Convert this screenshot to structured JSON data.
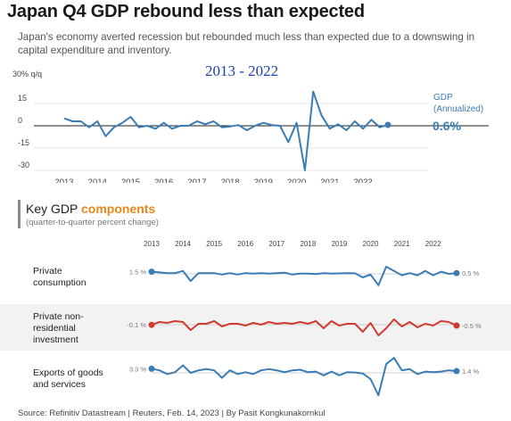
{
  "title": "Japan Q4 GDP rebound less than expected",
  "subtitle": "Japan's economy averted recession but rebounded much less than expected due to a downswing in capital expenditure and inventory.",
  "overlay_label": "2013 - 2022",
  "units_label": "30% q/q",
  "colors": {
    "series": "#3a7db5",
    "investment": "#d03b30",
    "accent": "#e8871e",
    "axis": "#222222"
  },
  "chart_data": [
    {
      "type": "line",
      "x": [
        2013.0,
        2013.25,
        2013.5,
        2013.75,
        2014.0,
        2014.25,
        2014.5,
        2014.75,
        2015.0,
        2015.25,
        2015.5,
        2015.75,
        2016.0,
        2016.25,
        2016.5,
        2016.75,
        2017.0,
        2017.25,
        2017.5,
        2017.75,
        2018.0,
        2018.25,
        2018.5,
        2018.75,
        2019.0,
        2019.25,
        2019.5,
        2019.75,
        2020.0,
        2020.25,
        2020.5,
        2020.75,
        2021.0,
        2021.25,
        2021.5,
        2021.75,
        2022.0,
        2022.25,
        2022.5,
        2022.75
      ],
      "series": [
        {
          "name": "GDP (Annualized)",
          "values": [
            5,
            3,
            3,
            -1,
            3,
            -7,
            -1,
            2,
            6,
            -1,
            0,
            -2,
            2,
            -2,
            0,
            0,
            3,
            1,
            3,
            -1,
            -0.5,
            0.5,
            -3,
            0,
            2,
            0.5,
            0,
            -11,
            2,
            -30,
            23,
            7,
            -2,
            1,
            -3,
            3,
            -2,
            4,
            -1,
            0.6
          ],
          "end_label": "0.6%"
        }
      ],
      "ylim": [
        -30,
        30
      ],
      "yticks": [
        "15",
        "0",
        "-15",
        "-30"
      ],
      "xticks": [
        "2013",
        "2014",
        "2015",
        "2016",
        "2017",
        "2018",
        "2019",
        "2020",
        "2021",
        "2022"
      ]
    },
    {
      "type": "line",
      "title": "Key GDP components",
      "subtitle": "(quarter-to-quarter percent change)",
      "title_plain": "Key GDP",
      "title_highlight": "components",
      "xticks": [
        "2013",
        "2014",
        "2015",
        "2016",
        "2017",
        "2018",
        "2019",
        "2020",
        "2021",
        "2022"
      ],
      "x": [
        2013.0,
        2013.25,
        2013.5,
        2013.75,
        2014.0,
        2014.25,
        2014.5,
        2014.75,
        2015.0,
        2015.25,
        2015.5,
        2015.75,
        2016.0,
        2016.25,
        2016.5,
        2016.75,
        2017.0,
        2017.25,
        2017.5,
        2017.75,
        2018.0,
        2018.25,
        2018.5,
        2018.75,
        2019.0,
        2019.25,
        2019.5,
        2019.75,
        2020.0,
        2020.25,
        2020.5,
        2020.75,
        2021.0,
        2021.25,
        2021.5,
        2021.75,
        2022.0,
        2022.25,
        2022.5,
        2022.75
      ],
      "series": [
        {
          "name": "Private consumption",
          "start_label": "1.5 %",
          "end_label": "0.5 %",
          "values": [
            1.5,
            1.0,
            0.5,
            0.5,
            2.0,
            -5.0,
            0.5,
            0.5,
            0.5,
            -0.5,
            0.5,
            -0.5,
            0.5,
            0.2,
            0.5,
            0.2,
            0.5,
            0.8,
            -0.5,
            0.2,
            0.2,
            -0.2,
            0.5,
            0.2,
            0.3,
            0.5,
            0.4,
            -2.5,
            -0.5,
            -8.0,
            5.0,
            2.0,
            -1.0,
            0.5,
            -1.0,
            2.0,
            -1.0,
            1.5,
            0.0,
            0.5
          ]
        },
        {
          "name": "Private non-residential investment",
          "start_label": "-0.1 %",
          "end_label": "-0.5 %",
          "values": [
            -0.1,
            1.5,
            1.0,
            2.0,
            1.5,
            -3.0,
            0.5,
            0.5,
            2.0,
            -1.0,
            0.5,
            0.5,
            -0.5,
            1.0,
            0.0,
            1.5,
            0.5,
            1.0,
            0.5,
            1.5,
            0.5,
            2.0,
            -2.0,
            2.0,
            -0.5,
            0.5,
            0.5,
            -4.0,
            1.0,
            -6.0,
            -2.0,
            3.0,
            -1.0,
            1.5,
            -1.5,
            0.5,
            -0.5,
            2.0,
            1.5,
            -0.5
          ]
        },
        {
          "name": "Exports of goods and services",
          "start_label": "3.3 %",
          "end_label": "1.4 %",
          "values": [
            3.3,
            2.0,
            -1.0,
            0.5,
            6.0,
            0.0,
            2.0,
            3.0,
            2.0,
            -4.0,
            2.0,
            -1.0,
            0.5,
            -1.0,
            2.0,
            3.0,
            2.0,
            0.5,
            2.0,
            2.5,
            0.5,
            1.0,
            -2.0,
            1.0,
            -2.0,
            0.5,
            0.3,
            -0.5,
            -5.0,
            -18.0,
            7.0,
            12.0,
            2.0,
            3.0,
            -1.0,
            1.0,
            0.5,
            1.0,
            2.0,
            1.4
          ]
        }
      ]
    }
  ],
  "rows": [
    {
      "label_line1": "Private",
      "label_line2": "consumption",
      "label_line3": ""
    },
    {
      "label_line1": "Private non-",
      "label_line2": "residential",
      "label_line3": "investment"
    },
    {
      "label_line1": "Exports of goods",
      "label_line2": "and services",
      "label_line3": ""
    }
  ],
  "source": "Source: Refinitiv Datastream | Reuters, Feb. 14, 2023 | By Pasit Kongkunakornkul"
}
